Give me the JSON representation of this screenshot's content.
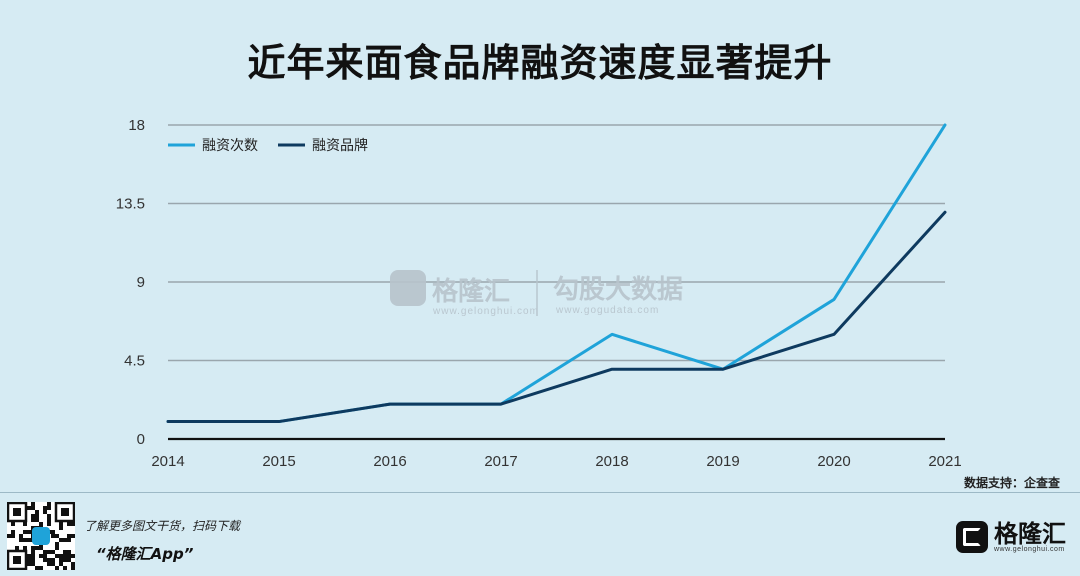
{
  "title": "近年来面食品牌融资速度显著提升",
  "source": "数据支持：企查查",
  "watermark": {
    "brand1": "格隆汇",
    "brand1_sub": "www.gelonghui.com",
    "brand2": "勾股大数据",
    "brand2_sub": "www.gogudata.com"
  },
  "footer": {
    "note": "了解更多图文干货，扫码下载",
    "app": "“格隆汇App”",
    "brand": "格隆汇",
    "brand_sub": "www.gelonghui.com"
  },
  "colors": {
    "series1": "#1fa3d9",
    "series2": "#0e3a5f",
    "grid": "#9aa6ad",
    "axis": "#111111"
  },
  "chart_data": {
    "type": "line",
    "x": [
      "2014",
      "2015",
      "2016",
      "2017",
      "2018",
      "2019",
      "2020",
      "2021"
    ],
    "series": [
      {
        "name": "融资次数",
        "values": [
          1,
          1,
          2,
          2,
          6,
          4,
          8,
          18
        ]
      },
      {
        "name": "融资品牌",
        "values": [
          1,
          1,
          2,
          2,
          4,
          4,
          6,
          13
        ]
      }
    ],
    "yticks": [
      "0",
      "4.5",
      "9",
      "13.5",
      "18"
    ],
    "ylim": [
      0,
      18
    ],
    "grid": true,
    "legend": "top-left"
  }
}
